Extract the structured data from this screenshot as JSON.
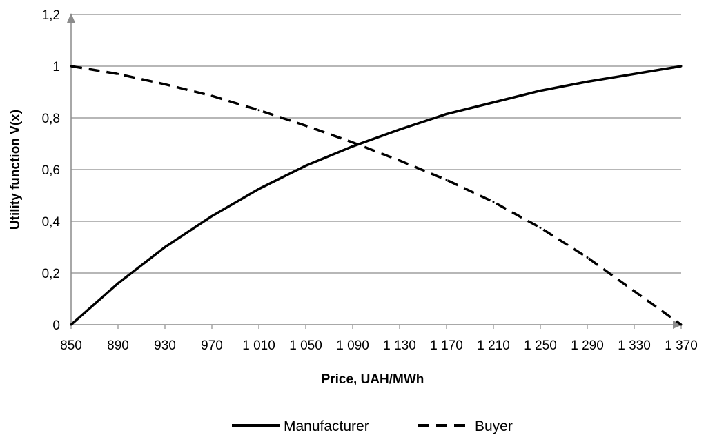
{
  "chart_data": {
    "type": "line",
    "title": "",
    "xlabel": "Price, UAH/MWh",
    "ylabel": "Utility function V(x)",
    "x": [
      850,
      890,
      930,
      970,
      1010,
      1050,
      1090,
      1130,
      1170,
      1210,
      1250,
      1290,
      1330,
      1370
    ],
    "x_tick_labels": [
      "850",
      "890",
      "930",
      "970",
      "1 010",
      "1 050",
      "1 090",
      "1 130",
      "1 170",
      "1 210",
      "1 250",
      "1 290",
      "1 330",
      "1 370"
    ],
    "xlim": [
      850,
      1370
    ],
    "ylim": [
      0,
      1.2
    ],
    "y_ticks": [
      0,
      0.2,
      0.4,
      0.6,
      0.8,
      1,
      1.2
    ],
    "y_tick_labels": [
      "0",
      "0,2",
      "0,4",
      "0,6",
      "0,8",
      "1",
      "1,2"
    ],
    "grid": "horizontal",
    "legend_position": "bottom",
    "series": [
      {
        "name": "Manufacturer",
        "style": "solid",
        "color": "#000000",
        "values": [
          0,
          0.16,
          0.3,
          0.42,
          0.525,
          0.615,
          0.69,
          0.755,
          0.815,
          0.86,
          0.905,
          0.94,
          0.97,
          1.0
        ]
      },
      {
        "name": "Buyer",
        "style": "dashed",
        "color": "#000000",
        "values": [
          1.0,
          0.97,
          0.93,
          0.885,
          0.83,
          0.77,
          0.705,
          0.635,
          0.56,
          0.475,
          0.375,
          0.26,
          0.13,
          0
        ]
      }
    ],
    "colors": {
      "gridline": "#8c8c8c",
      "axis": "#8c8c8c",
      "line": "#000000"
    }
  }
}
